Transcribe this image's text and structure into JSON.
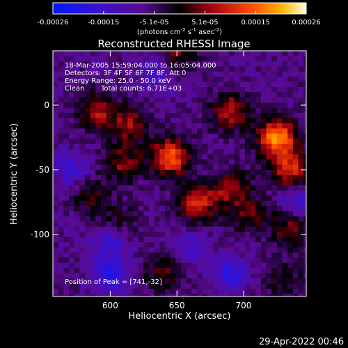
{
  "chart_data": {
    "type": "heatmap",
    "title": "Reconstructed RHESSI Image",
    "xlabel": "Heliocentric X (arcsec)",
    "ylabel": "Heliocentric Y (arcsec)",
    "xlim": [
      557,
      747
    ],
    "ylim": [
      -148,
      42
    ],
    "x_ticks": [
      600,
      650,
      700
    ],
    "y_ticks": [
      0,
      -50,
      -100
    ],
    "colorbar": {
      "ticks": [
        "-0.00026",
        "-0.00015",
        "-5.1e-05",
        "5.1e-05",
        "0.00015",
        "0.00026"
      ],
      "unit_label": "(photons cm-2 s-1 asec-2)",
      "range": [
        -0.00026,
        0.00026
      ]
    },
    "annotations": {
      "time_range": "18-Mar-2005 15:59:04.000 to 16:05:04.000",
      "detectors": "Detectors: 3F 4F 5F 6F 7F 8F, Att 0",
      "energy": "Energy Range: 25.0 - 50.0 keV",
      "clean": "Clean",
      "counts": "Total counts: 6.71E+03",
      "peak": "Position of Peak = [741,-32]"
    },
    "peak_position": [
      741,
      -32
    ],
    "sources": [
      {
        "x": 590,
        "y": -5,
        "amp": 0.00014
      },
      {
        "x": 615,
        "y": -15,
        "amp": 0.00013
      },
      {
        "x": 645,
        "y": -40,
        "amp": 0.00022
      },
      {
        "x": 610,
        "y": -45,
        "amp": 0.00012
      },
      {
        "x": 665,
        "y": -75,
        "amp": 0.00018
      },
      {
        "x": 690,
        "y": -5,
        "amp": 0.00015
      },
      {
        "x": 725,
        "y": -25,
        "amp": 0.00026
      },
      {
        "x": 735,
        "y": -50,
        "amp": 0.00018
      },
      {
        "x": 690,
        "y": -65,
        "amp": 0.00013
      },
      {
        "x": 735,
        "y": -95,
        "amp": 0.00012
      },
      {
        "x": 705,
        "y": -85,
        "amp": 0.0001
      },
      {
        "x": 585,
        "y": -70,
        "amp": 8e-05
      },
      {
        "x": 640,
        "y": -130,
        "amp": 9e-05
      },
      {
        "x": 605,
        "y": -90,
        "amp": 7e-05
      },
      {
        "x": 730,
        "y": -135,
        "amp": 7e-05
      },
      {
        "x": 650,
        "y": 40,
        "amp": 0.0001
      }
    ],
    "negatives": [
      {
        "x": 600,
        "y": -130,
        "amp": -0.00014
      },
      {
        "x": 690,
        "y": -130,
        "amp": -0.00012
      },
      {
        "x": 740,
        "y": -75,
        "amp": -0.0001
      },
      {
        "x": 570,
        "y": -50,
        "amp": -9e-05
      },
      {
        "x": 635,
        "y": 25,
        "amp": -8e-05
      },
      {
        "x": 600,
        "y": -105,
        "amp": -0.0001
      },
      {
        "x": 660,
        "y": -110,
        "amp": -8e-05
      }
    ]
  },
  "footer_date": "29-Apr-2022 00:46"
}
